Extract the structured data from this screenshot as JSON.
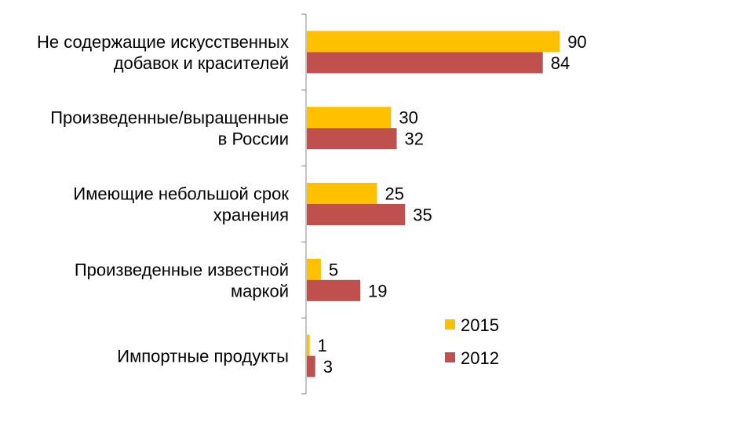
{
  "chart_data": {
    "type": "bar",
    "orientation": "horizontal",
    "categories": [
      [
        "Не содержащие искусственных",
        "добавок и красителей"
      ],
      [
        "Произведенные/выращенные",
        "в России"
      ],
      [
        "Имеющие небольшой срок",
        "хранения"
      ],
      [
        "Произведенные известной",
        "маркой"
      ],
      [
        "Импортные продукты"
      ]
    ],
    "series": [
      {
        "name": "2015",
        "values": [
          90,
          30,
          25,
          5,
          1
        ],
        "color": "#FFC000"
      },
      {
        "name": "2012",
        "values": [
          84,
          32,
          35,
          19,
          3
        ],
        "color": "#C0504D"
      }
    ],
    "xlim": [
      0,
      100
    ],
    "grid": false,
    "legend_position": "right"
  }
}
